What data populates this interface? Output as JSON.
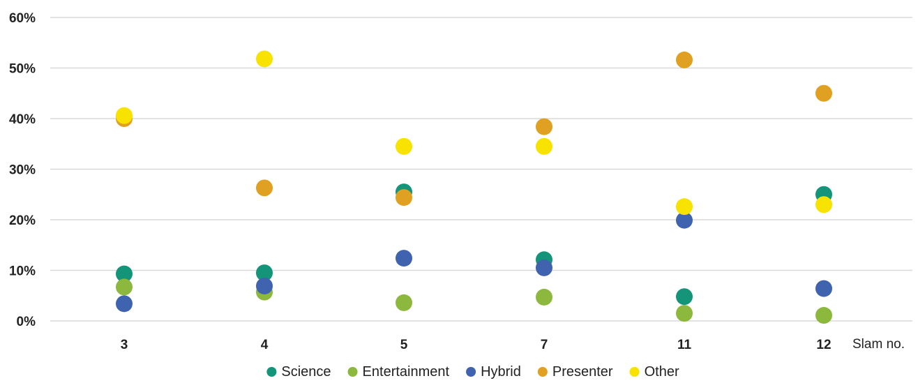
{
  "chart_data": {
    "type": "scatter",
    "title": "",
    "xlabel": "Slam no.",
    "ylabel": "",
    "categories": [
      "3",
      "4",
      "5",
      "7",
      "11",
      "12"
    ],
    "ylim": [
      0,
      60
    ],
    "yticks": [
      0,
      10,
      20,
      30,
      40,
      50,
      60
    ],
    "ytick_labels": [
      "0%",
      "10%",
      "20%",
      "30%",
      "40%",
      "50%",
      "60%"
    ],
    "grid": true,
    "legend_position": "bottom",
    "series": [
      {
        "name": "Science",
        "color": "#14957A",
        "values": [
          9.3,
          9.5,
          25.5,
          12.1,
          4.8,
          25.0
        ]
      },
      {
        "name": "Entertainment",
        "color": "#8BB83D",
        "values": [
          6.7,
          5.7,
          3.6,
          4.7,
          1.5,
          1.1
        ]
      },
      {
        "name": "Hybrid",
        "color": "#3F63AE",
        "values": [
          3.4,
          6.9,
          12.4,
          10.5,
          19.9,
          6.4
        ]
      },
      {
        "name": "Presenter",
        "color": "#E0A021",
        "values": [
          40.0,
          26.3,
          24.4,
          38.4,
          51.6,
          45.0
        ]
      },
      {
        "name": "Other",
        "color": "#F7E200",
        "values": [
          40.6,
          51.8,
          34.5,
          34.5,
          22.6,
          23.0
        ]
      }
    ]
  }
}
